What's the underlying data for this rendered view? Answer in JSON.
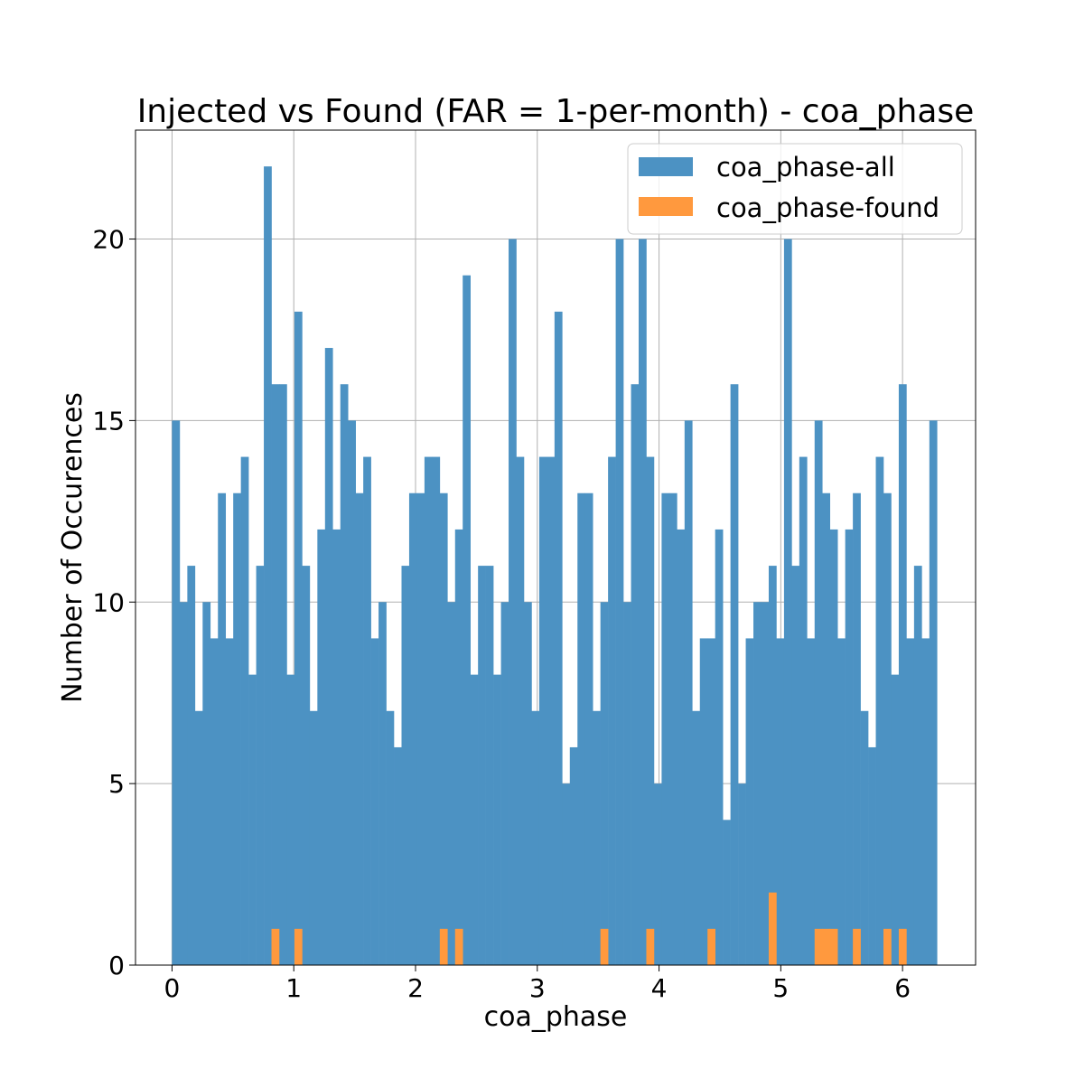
{
  "chart_data": {
    "type": "bar",
    "title": "Injected vs Found (FAR = 1-per-month) - coa_phase",
    "xlabel": "coa_phase",
    "ylabel": "Number of Occurences",
    "xlim": [
      -0.3,
      6.6
    ],
    "ylim": [
      0,
      23
    ],
    "xticks": [
      0,
      1,
      2,
      3,
      4,
      5,
      6
    ],
    "xtick_labels": [
      "0",
      "1",
      "2",
      "3",
      "4",
      "5",
      "6"
    ],
    "yticks": [
      0,
      5,
      10,
      15,
      20
    ],
    "ytick_labels": [
      "0",
      "5",
      "10",
      "15",
      "20"
    ],
    "grid": true,
    "legend_position": "top-right",
    "bin_start": 0,
    "bin_width": 0.06283,
    "series": [
      {
        "name": "coa_phase-all",
        "color": "#4c92c3",
        "values": [
          15,
          10,
          11,
          7,
          10,
          9,
          13,
          9,
          13,
          14,
          8,
          11,
          22,
          16,
          16,
          8,
          18,
          11,
          7,
          12,
          17,
          12,
          16,
          15,
          13,
          14,
          9,
          10,
          7,
          6,
          11,
          13,
          13,
          14,
          14,
          13,
          10,
          12,
          19,
          8,
          11,
          11,
          8,
          10,
          20,
          14,
          10,
          7,
          14,
          14,
          18,
          5,
          6,
          13,
          13,
          7,
          10,
          14,
          20,
          10,
          16,
          20,
          14,
          5,
          13,
          13,
          12,
          15,
          7,
          9,
          9,
          12,
          4,
          16,
          5,
          9,
          10,
          10,
          11,
          9,
          20,
          11,
          14,
          9,
          15,
          13,
          12,
          9,
          12,
          13,
          7,
          6,
          14,
          13,
          8,
          16,
          9,
          11,
          9,
          15
        ]
      },
      {
        "name": "coa_phase-found",
        "color": "#ff993e",
        "values": [
          0,
          0,
          0,
          0,
          0,
          0,
          0,
          0,
          0,
          0,
          0,
          0,
          0,
          1,
          0,
          0,
          1,
          0,
          0,
          0,
          0,
          0,
          0,
          0,
          0,
          0,
          0,
          0,
          0,
          0,
          0,
          0,
          0,
          0,
          0,
          1,
          0,
          1,
          0,
          0,
          0,
          0,
          0,
          0,
          0,
          0,
          0,
          0,
          0,
          0,
          0,
          0,
          0,
          0,
          0,
          0,
          1,
          0,
          0,
          0,
          0,
          0,
          1,
          0,
          0,
          0,
          0,
          0,
          0,
          0,
          1,
          0,
          0,
          0,
          0,
          0,
          0,
          0,
          2,
          0,
          0,
          0,
          0,
          0,
          1,
          1,
          1,
          0,
          0,
          1,
          0,
          0,
          0,
          1,
          0,
          1,
          0,
          0,
          0,
          0
        ]
      }
    ]
  }
}
